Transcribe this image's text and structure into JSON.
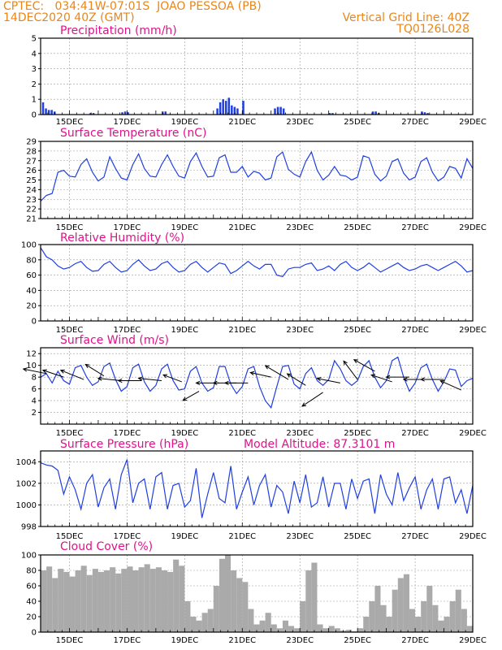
{
  "header": {
    "line1_left": "CPTEC:   034:41W-07:01S  JOAO PESSOA (PB)",
    "line2_left": "14DEC2020 40Z (GMT)",
    "line1_right": "Vertical Grid Line: 40Z",
    "line2_right": "TQ0126L028",
    "color": "#e8861a"
  },
  "colors": {
    "title": "#e0128a",
    "series": "#1f3fe0",
    "cloud": "#aaaaaa",
    "wind_arrow": "#000000"
  },
  "chart_data": [
    {
      "id": "precip",
      "type": "bar",
      "title": "Precipitation (mm/h)",
      "ylim": [
        0,
        5
      ],
      "yticks": [
        0,
        1,
        2,
        3,
        4,
        5
      ],
      "xlim": [
        14.0,
        29.0
      ],
      "xticks": [
        "15DEC",
        "17DEC",
        "19DEC",
        "21DEC",
        "23DEC",
        "25DEC",
        "27DEC",
        "29DEC"
      ],
      "x": [
        14.05,
        14.15,
        14.25,
        14.35,
        14.45,
        15.7,
        15.8,
        16.8,
        16.9,
        17.0,
        18.2,
        18.3,
        20.1,
        20.2,
        20.3,
        20.4,
        20.5,
        20.6,
        20.7,
        20.8,
        21.0,
        22.1,
        22.2,
        22.3,
        22.4,
        24.0,
        24.1,
        25.5,
        25.6,
        25.7,
        27.2,
        27.3,
        27.4
      ],
      "values": [
        0.8,
        0.4,
        0.3,
        0.3,
        0.2,
        0.1,
        0.1,
        0.15,
        0.2,
        0.15,
        0.2,
        0.2,
        0.4,
        0.8,
        1.0,
        0.9,
        1.1,
        0.6,
        0.5,
        0.4,
        0.9,
        0.4,
        0.5,
        0.5,
        0.4,
        0.1,
        0.1,
        0.2,
        0.2,
        0.1,
        0.2,
        0.15,
        0.1
      ]
    },
    {
      "id": "temp",
      "type": "line",
      "title": "Surface Temperature (nC)",
      "ylim": [
        21,
        29
      ],
      "yticks": [
        21,
        22,
        23,
        24,
        25,
        26,
        27,
        28,
        29
      ],
      "xlim": [
        14.0,
        29.0
      ],
      "xticks": [
        "15DEC",
        "17DEC",
        "19DEC",
        "21DEC",
        "23DEC",
        "25DEC",
        "27DEC",
        "29DEC"
      ],
      "x": [
        14.0,
        14.2,
        14.4,
        14.6,
        14.8,
        15.0,
        15.2,
        15.4,
        15.6,
        15.8,
        16.0,
        16.2,
        16.4,
        16.6,
        16.8,
        17.0,
        17.2,
        17.4,
        17.6,
        17.8,
        18.0,
        18.2,
        18.4,
        18.6,
        18.8,
        19.0,
        19.2,
        19.4,
        19.6,
        19.8,
        20.0,
        20.2,
        20.4,
        20.6,
        20.8,
        21.0,
        21.2,
        21.4,
        21.6,
        21.8,
        22.0,
        22.2,
        22.4,
        22.6,
        22.8,
        23.0,
        23.2,
        23.4,
        23.6,
        23.8,
        24.0,
        24.2,
        24.4,
        24.6,
        24.8,
        25.0,
        25.2,
        25.4,
        25.6,
        25.8,
        26.0,
        26.2,
        26.4,
        26.6,
        26.8,
        27.0,
        27.2,
        27.4,
        27.6,
        27.8,
        28.0,
        28.2,
        28.4,
        28.6,
        28.8,
        29.0
      ],
      "values": [
        22.8,
        23.4,
        23.6,
        25.8,
        26.0,
        25.4,
        25.3,
        26.6,
        27.2,
        25.8,
        24.9,
        25.3,
        27.4,
        26.2,
        25.2,
        25.0,
        26.6,
        27.7,
        26.2,
        25.4,
        25.3,
        26.6,
        27.6,
        26.4,
        25.4,
        25.2,
        26.9,
        27.8,
        26.4,
        25.3,
        25.4,
        27.3,
        27.6,
        25.8,
        25.8,
        26.4,
        25.3,
        25.9,
        25.7,
        25.0,
        25.2,
        27.4,
        27.9,
        26.1,
        25.6,
        25.3,
        26.9,
        27.9,
        26.0,
        25.0,
        25.5,
        26.4,
        25.5,
        25.4,
        25.0,
        25.3,
        27.5,
        27.3,
        25.6,
        24.9,
        25.4,
        26.9,
        27.2,
        25.7,
        25.0,
        25.3,
        26.9,
        27.3,
        25.8,
        24.9,
        25.3,
        26.4,
        26.2,
        25.2,
        27.2,
        26.2
      ]
    },
    {
      "id": "rh",
      "type": "line",
      "title": "Relative Humidity (%)",
      "ylim": [
        0,
        100
      ],
      "yticks": [
        0,
        20,
        40,
        60,
        80,
        100
      ],
      "xlim": [
        14.0,
        29.0
      ],
      "xticks": [
        "15DEC",
        "17DEC",
        "19DEC",
        "21DEC",
        "23DEC",
        "25DEC",
        "27DEC",
        "29DEC"
      ],
      "x": [
        14.0,
        14.2,
        14.4,
        14.6,
        14.8,
        15.0,
        15.2,
        15.4,
        15.6,
        15.8,
        16.0,
        16.2,
        16.4,
        16.6,
        16.8,
        17.0,
        17.2,
        17.4,
        17.6,
        17.8,
        18.0,
        18.2,
        18.4,
        18.6,
        18.8,
        19.0,
        19.2,
        19.4,
        19.6,
        19.8,
        20.0,
        20.2,
        20.4,
        20.6,
        20.8,
        21.0,
        21.2,
        21.4,
        21.6,
        21.8,
        22.0,
        22.2,
        22.4,
        22.6,
        22.8,
        23.0,
        23.2,
        23.4,
        23.6,
        23.8,
        24.0,
        24.2,
        24.4,
        24.6,
        24.8,
        25.0,
        25.2,
        25.4,
        25.6,
        25.8,
        26.0,
        26.2,
        26.4,
        26.6,
        26.8,
        27.0,
        27.2,
        27.4,
        27.6,
        27.8,
        28.0,
        28.2,
        28.4,
        28.6,
        28.8,
        29.0
      ],
      "values": [
        96,
        84,
        80,
        72,
        68,
        70,
        75,
        78,
        70,
        65,
        66,
        74,
        78,
        70,
        64,
        66,
        74,
        80,
        72,
        66,
        68,
        75,
        78,
        70,
        64,
        66,
        74,
        78,
        70,
        64,
        70,
        76,
        74,
        62,
        66,
        72,
        78,
        72,
        68,
        74,
        74,
        60,
        58,
        68,
        70,
        70,
        74,
        76,
        66,
        68,
        72,
        66,
        74,
        78,
        70,
        66,
        70,
        76,
        70,
        64,
        68,
        72,
        76,
        70,
        66,
        68,
        72,
        74,
        70,
        66,
        70,
        74,
        78,
        72,
        64,
        66
      ]
    },
    {
      "id": "wind",
      "type": "line",
      "title": "Surface Wind (m/s)",
      "ylim": [
        0,
        13
      ],
      "yticks": [
        2,
        4,
        6,
        8,
        10,
        12
      ],
      "xlim": [
        14.0,
        29.0
      ],
      "xticks": [
        "15DEC",
        "17DEC",
        "19DEC",
        "21DEC",
        "23DEC",
        "25DEC",
        "27DEC",
        "29DEC"
      ],
      "x": [
        14.0,
        14.2,
        14.4,
        14.6,
        14.8,
        15.0,
        15.2,
        15.4,
        15.6,
        15.8,
        16.0,
        16.2,
        16.4,
        16.6,
        16.8,
        17.0,
        17.2,
        17.4,
        17.6,
        17.8,
        18.0,
        18.2,
        18.4,
        18.6,
        18.8,
        19.0,
        19.2,
        19.4,
        19.6,
        19.8,
        20.0,
        20.2,
        20.4,
        20.6,
        20.8,
        21.0,
        21.2,
        21.4,
        21.6,
        21.8,
        22.0,
        22.2,
        22.4,
        22.6,
        22.8,
        23.0,
        23.2,
        23.4,
        23.6,
        23.8,
        24.0,
        24.2,
        24.4,
        24.6,
        24.8,
        25.0,
        25.2,
        25.4,
        25.6,
        25.8,
        26.0,
        26.2,
        26.4,
        26.6,
        26.8,
        27.0,
        27.2,
        27.4,
        27.6,
        27.8,
        28.0,
        28.2,
        28.4,
        28.6,
        28.8,
        29.0
      ],
      "values": [
        8.0,
        8.6,
        7.0,
        9.0,
        7.4,
        6.8,
        9.6,
        10.0,
        8.0,
        6.6,
        7.2,
        9.8,
        10.4,
        7.6,
        5.6,
        6.4,
        9.6,
        10.2,
        7.2,
        5.6,
        6.6,
        9.4,
        10.2,
        7.4,
        5.8,
        6.0,
        9.0,
        9.8,
        7.0,
        5.6,
        6.2,
        9.8,
        9.8,
        6.8,
        5.2,
        6.4,
        9.4,
        9.8,
        6.4,
        4.0,
        2.8,
        6.4,
        9.8,
        10.0,
        6.8,
        6.0,
        8.6,
        9.6,
        7.4,
        6.6,
        7.6,
        10.8,
        9.4,
        7.4,
        6.6,
        7.4,
        9.8,
        10.8,
        8.0,
        6.2,
        7.4,
        10.8,
        11.4,
        8.0,
        5.6,
        7.0,
        9.6,
        10.2,
        7.6,
        5.6,
        7.2,
        9.4,
        9.2,
        6.4,
        7.4,
        7.8
      ]
    },
    {
      "id": "pressure",
      "type": "line",
      "title": "Surface Pressure (hPa)",
      "subtitle": "Model Altitude: 87.3101 m",
      "ylim": [
        998,
        1005
      ],
      "yticks": [
        998,
        1000,
        1002,
        1004
      ],
      "xlim": [
        14.0,
        29.0
      ],
      "xticks": [
        "15DEC",
        "17DEC",
        "19DEC",
        "21DEC",
        "23DEC",
        "25DEC",
        "27DEC",
        "29DEC"
      ],
      "x": [
        14.0,
        14.2,
        14.4,
        14.6,
        14.8,
        15.0,
        15.2,
        15.4,
        15.6,
        15.8,
        16.0,
        16.2,
        16.4,
        16.6,
        16.8,
        17.0,
        17.2,
        17.4,
        17.6,
        17.8,
        18.0,
        18.2,
        18.4,
        18.6,
        18.8,
        19.0,
        19.2,
        19.4,
        19.6,
        19.8,
        20.0,
        20.2,
        20.4,
        20.6,
        20.8,
        21.0,
        21.2,
        21.4,
        21.6,
        21.8,
        22.0,
        22.2,
        22.4,
        22.6,
        22.8,
        23.0,
        23.2,
        23.4,
        23.6,
        23.8,
        24.0,
        24.2,
        24.4,
        24.6,
        24.8,
        25.0,
        25.2,
        25.4,
        25.6,
        25.8,
        26.0,
        26.2,
        26.4,
        26.6,
        26.8,
        27.0,
        27.2,
        27.4,
        27.6,
        27.8,
        28.0,
        28.2,
        28.4,
        28.6,
        28.8,
        29.0
      ],
      "values": [
        1003.9,
        1003.7,
        1003.6,
        1003.2,
        1001.0,
        1002.6,
        1001.4,
        999.6,
        1002.0,
        1002.8,
        999.8,
        1001.6,
        1002.4,
        999.6,
        1002.8,
        1004.2,
        1000.2,
        1002.0,
        1002.4,
        999.6,
        1002.6,
        1003.0,
        999.6,
        1001.8,
        1002.0,
        999.8,
        1000.4,
        1003.4,
        998.8,
        1001.0,
        1003.0,
        1000.6,
        1000.2,
        1003.6,
        999.6,
        1001.2,
        1002.6,
        1000.0,
        1001.8,
        1002.8,
        999.8,
        1001.8,
        1001.2,
        999.2,
        1002.2,
        1000.2,
        1002.8,
        999.8,
        1000.2,
        1002.6,
        999.8,
        1002.0,
        1002.0,
        999.6,
        1002.4,
        1000.6,
        1002.2,
        1002.4,
        999.2,
        1002.8,
        1001.0,
        1000.0,
        1003.0,
        1000.4,
        1001.6,
        1002.6,
        999.6,
        1001.4,
        1002.4,
        999.6,
        1002.4,
        1002.6,
        1000.2,
        1001.4,
        999.2,
        1001.8
      ]
    },
    {
      "id": "cloud",
      "type": "area",
      "title": "Cloud Cover (%)",
      "ylim": [
        0,
        100
      ],
      "yticks": [
        0,
        20,
        40,
        60,
        80,
        100
      ],
      "xlim": [
        14.0,
        29.0
      ],
      "xticks": [
        "15DEC",
        "17DEC",
        "19DEC",
        "21DEC",
        "23DEC",
        "25DEC",
        "27DEC",
        "29DEC"
      ],
      "x": [
        14.0,
        14.2,
        14.4,
        14.6,
        14.8,
        15.0,
        15.2,
        15.4,
        15.6,
        15.8,
        16.0,
        16.2,
        16.4,
        16.6,
        16.8,
        17.0,
        17.2,
        17.4,
        17.6,
        17.8,
        18.0,
        18.2,
        18.4,
        18.6,
        18.8,
        19.0,
        19.2,
        19.4,
        19.6,
        19.8,
        20.0,
        20.2,
        20.4,
        20.6,
        20.8,
        21.0,
        21.2,
        21.4,
        21.6,
        21.8,
        22.0,
        22.2,
        22.4,
        22.6,
        22.8,
        23.0,
        23.2,
        23.4,
        23.6,
        23.8,
        24.0,
        24.2,
        24.4,
        24.6,
        24.8,
        25.0,
        25.2,
        25.4,
        25.6,
        25.8,
        26.0,
        26.2,
        26.4,
        26.6,
        26.8,
        27.0,
        27.2,
        27.4,
        27.6,
        27.8,
        28.0,
        28.2,
        28.4,
        28.6,
        28.8,
        29.0
      ],
      "values": [
        80,
        85,
        70,
        82,
        78,
        72,
        80,
        86,
        74,
        82,
        78,
        80,
        84,
        76,
        82,
        85,
        80,
        84,
        88,
        82,
        84,
        80,
        78,
        94,
        86,
        40,
        20,
        15,
        25,
        30,
        60,
        95,
        100,
        80,
        70,
        65,
        30,
        10,
        15,
        25,
        10,
        5,
        15,
        8,
        5,
        40,
        80,
        90,
        10,
        5,
        8,
        5,
        2,
        3,
        1,
        5,
        20,
        40,
        60,
        35,
        20,
        55,
        70,
        75,
        30,
        20,
        40,
        60,
        35,
        15,
        20,
        40,
        55,
        30,
        8,
        10
      ]
    }
  ],
  "wind_vectors": {
    "arrow_length_data_units": 0.5,
    "x": [
      14.2,
      14.8,
      15.5,
      16.2,
      16.8,
      17.5,
      18.2,
      18.9,
      19.5,
      20.2,
      20.8,
      21.2,
      22.0,
      22.6,
      23.2,
      23.8,
      24.4,
      25.0,
      25.6,
      26.2,
      26.8,
      27.4,
      28.0,
      28.6
    ],
    "y": [
      8.6,
      8.0,
      7.6,
      8.2,
      7.4,
      7.4,
      7.4,
      7.2,
      5.6,
      7.0,
      7.0,
      7.0,
      8.0,
      7.6,
      6.6,
      5.4,
      7.0,
      7.6,
      9.0,
      7.2,
      8.0,
      7.6,
      7.6,
      5.8
    ],
    "dx": [
      -1.0,
      -0.9,
      -1.0,
      -0.8,
      -1.0,
      -1.0,
      -1.0,
      -0.8,
      -0.7,
      -1.0,
      -1.0,
      -1.0,
      -0.9,
      -1.0,
      -0.8,
      -0.9,
      -1.0,
      -0.6,
      -0.9,
      -0.9,
      -1.0,
      -1.0,
      -1.0,
      -0.9
    ],
    "dy": [
      0.2,
      0.3,
      0.4,
      0.5,
      0.1,
      0.0,
      0.1,
      0.3,
      -0.4,
      0.0,
      0.0,
      0.0,
      0.2,
      0.6,
      0.5,
      -0.6,
      0.2,
      0.8,
      0.5,
      0.3,
      0.0,
      0.0,
      0.0,
      0.4
    ]
  }
}
